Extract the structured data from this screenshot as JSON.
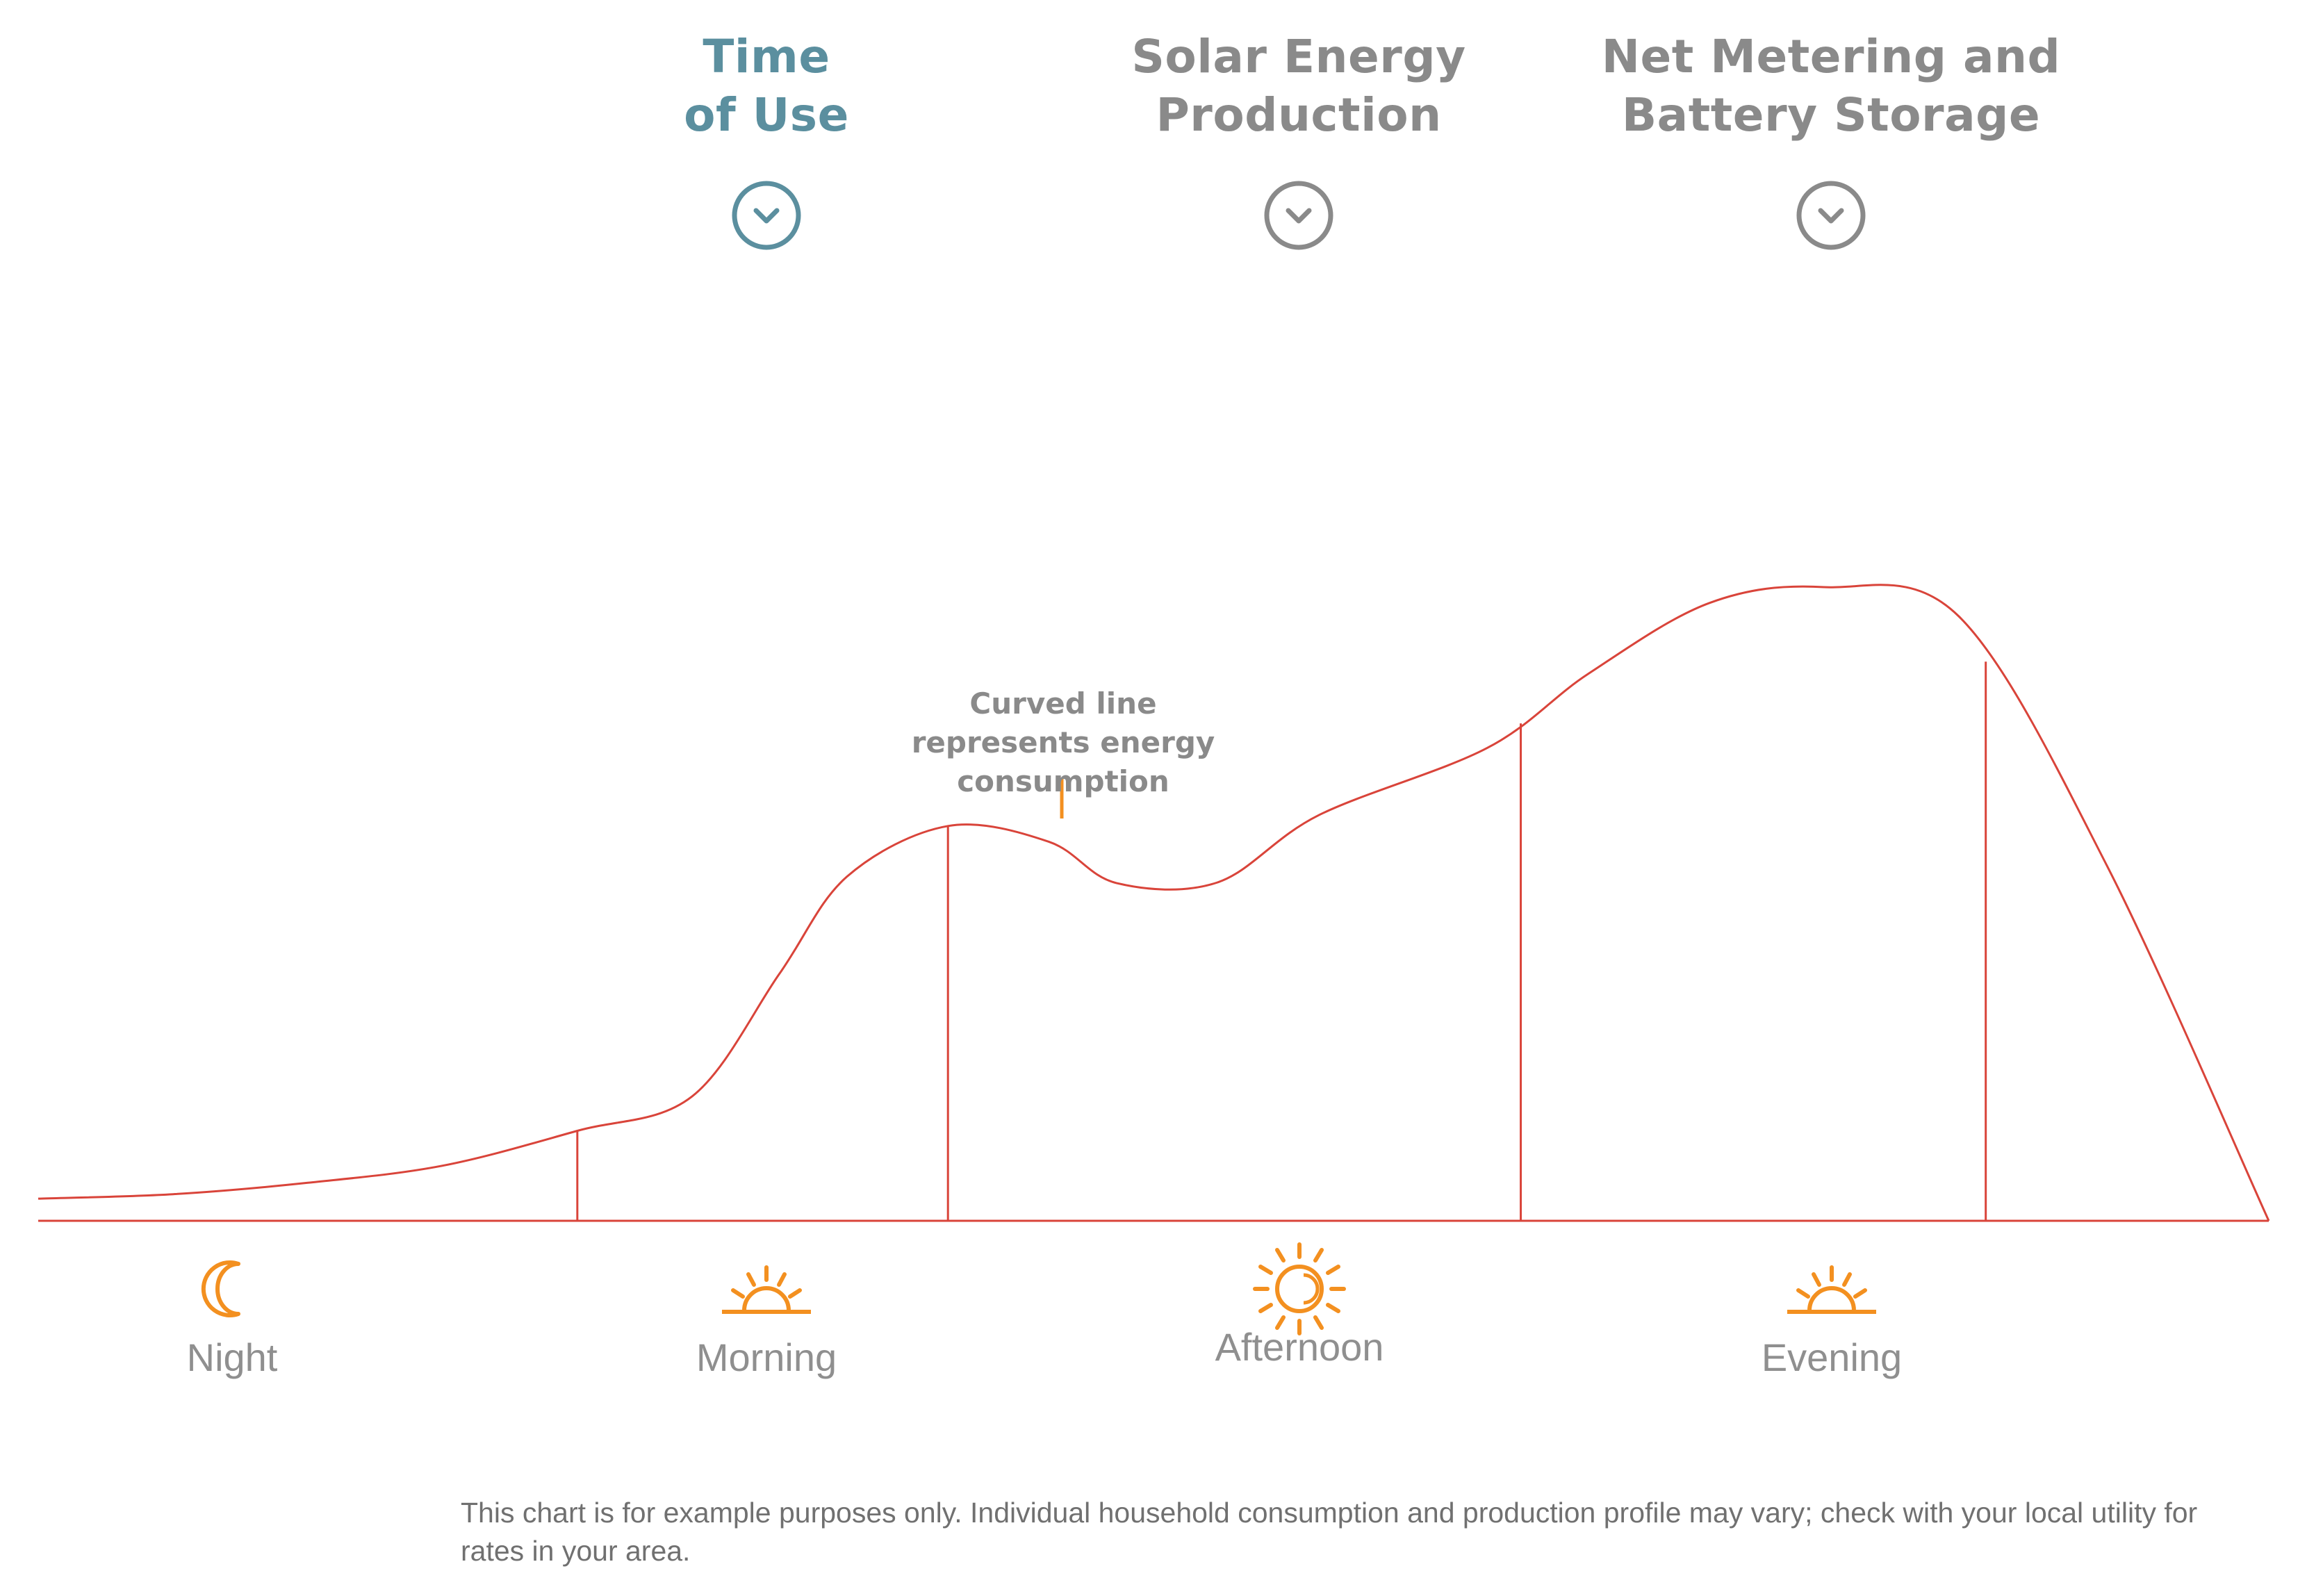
{
  "tabs": [
    {
      "label": "Time\nof Use",
      "active": true,
      "color": "#5b8f9f"
    },
    {
      "label": "Solar Energy\nProduction",
      "active": false,
      "color": "#8a8a8a"
    },
    {
      "label": "Net Metering and\nBattery Storage",
      "active": false,
      "color": "#8a8a8a"
    }
  ],
  "annotation": {
    "text": "Curved line represents energy consumption",
    "color": "#8a8a8a",
    "marker_color": "#f39020"
  },
  "chart_data": {
    "type": "line",
    "title": "",
    "xlabel": "",
    "ylabel": "",
    "grid": false,
    "line_color": "#d9443a",
    "periods": [
      "Night",
      "Morning",
      "Afternoon",
      "Evening"
    ],
    "x": [
      0,
      2,
      4,
      6,
      8,
      9.7,
      11,
      12,
      13.5,
      15,
      16,
      17.5,
      19,
      21.5,
      23,
      24.8,
      26.5,
      28.5,
      30.7,
      33.1
    ],
    "y": [
      3.5,
      4.2,
      6,
      8.7,
      14.2,
      19.6,
      39,
      54.3,
      62.3,
      59.8,
      53.3,
      53.4,
      64,
      74.6,
      86.3,
      97.5,
      100,
      95.4,
      56,
      0
    ],
    "dividers_x": [
      8,
      13.5,
      22,
      28.9
    ]
  },
  "time_periods": [
    {
      "label": "Night",
      "icon": "moon-icon"
    },
    {
      "label": "Morning",
      "icon": "sunrise-icon"
    },
    {
      "label": "Afternoon",
      "icon": "sun-icon"
    },
    {
      "label": "Evening",
      "icon": "sunset-icon"
    }
  ],
  "disclaimer": "This chart is for example purposes only. Individual household consumption and production profile may vary; check with your local utility for rates in your area.",
  "colors": {
    "accent": "#5b8f9f",
    "inactive": "#8a8a8a",
    "icon_orange": "#f39020",
    "curve_red": "#d9443a",
    "label_gray": "#8f8f8f",
    "note_gray": "#707070"
  }
}
